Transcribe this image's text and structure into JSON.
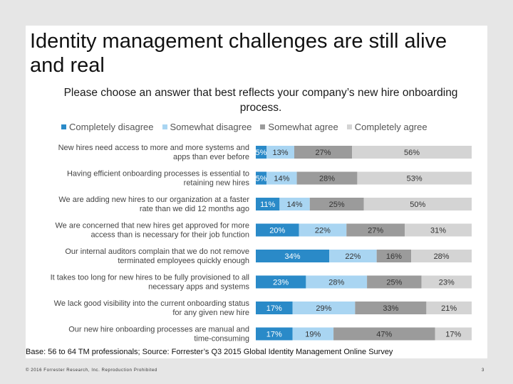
{
  "slide": {
    "title": "Identity management challenges are still alive and real",
    "subtitle": "Please choose an answer that best reflects your company’s new hire onboarding process.",
    "source": "Base: 56 to 64 TM professionals; Source: Forrester’s Q3 2015 Global Identity Management Online Survey",
    "footer": "© 2016 Forrester Research, Inc. Reproduction Prohibited",
    "page_number": "3"
  },
  "chart_data": {
    "type": "bar",
    "orientation": "horizontal",
    "stacked": true,
    "legend_position": "top",
    "categories": [
      [
        "New hires need access to more and more systems and",
        "apps than ever before"
      ],
      [
        "Having efficient onboarding processes is essential to",
        "retaining new hires"
      ],
      [
        "We are adding new hires to our organization at a faster",
        "rate than we did 12 months ago"
      ],
      [
        "We are concerned that new hires get approved for more",
        "access than is necessary for their job function"
      ],
      [
        "Our internal auditors complain that we do not remove",
        "terminated employees quickly enough"
      ],
      [
        "It takes too long for new hires to be fully provisioned to all",
        "necessary apps and systems"
      ],
      [
        "We lack good visibility into the current onboarding status",
        "for any given new hire"
      ],
      [
        "Our new hire onboarding processes are manual and",
        "time-consuming"
      ]
    ],
    "series": [
      {
        "name": "Completely disagree",
        "color": "#2a8ac8",
        "values": [
          5,
          5,
          11,
          20,
          34,
          23,
          17,
          17
        ]
      },
      {
        "name": "Somewhat disagree",
        "color": "#a9d5f2",
        "values": [
          13,
          14,
          14,
          22,
          22,
          28,
          29,
          19
        ]
      },
      {
        "name": "Somewhat agree",
        "color": "#9b9b9b",
        "values": [
          27,
          28,
          25,
          27,
          16,
          25,
          33,
          47
        ]
      },
      {
        "name": "Completely agree",
        "color": "#d4d4d4",
        "values": [
          56,
          53,
          50,
          31,
          28,
          23,
          21,
          17
        ]
      }
    ],
    "value_labels": [
      [
        "5%",
        "13%",
        "27%",
        "56%"
      ],
      [
        "5%",
        "14%",
        "28%",
        "53%"
      ],
      [
        "11%",
        "14%",
        "25%",
        "50%"
      ],
      [
        "20%",
        "22%",
        "27%",
        "31%"
      ],
      [
        "34%",
        "22%",
        "16%",
        "28%"
      ],
      [
        "23%",
        "28%",
        "25%",
        "23%"
      ],
      [
        "17%",
        "29%",
        "33%",
        "21%"
      ],
      [
        "17%",
        "19%",
        "47%",
        "17%"
      ]
    ]
  }
}
